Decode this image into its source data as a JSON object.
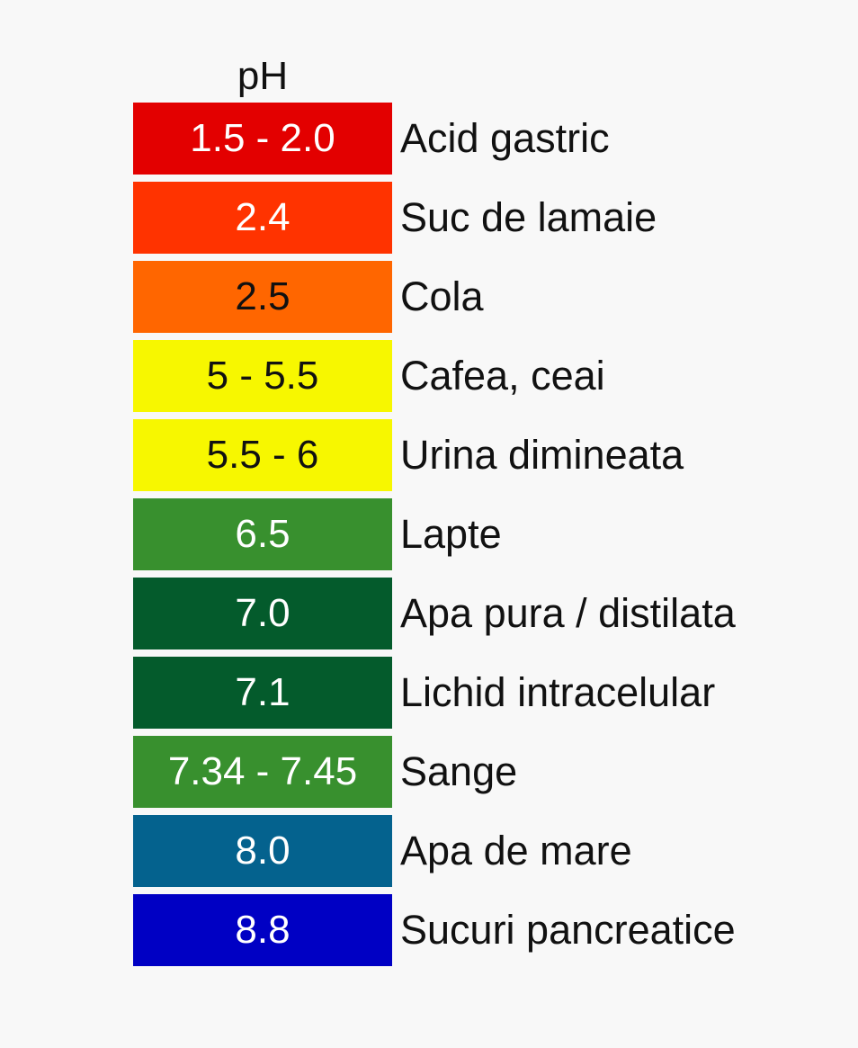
{
  "header": "pH",
  "rows": [
    {
      "value": "1.5 - 2.0",
      "label": "Acid gastric",
      "color": "#e30000",
      "text_color": "#ffffff"
    },
    {
      "value": "2.4",
      "label": "Suc de lamaie",
      "color": "#ff3300",
      "text_color": "#ffffff"
    },
    {
      "value": "2.5",
      "label": "Cola",
      "color": "#ff6600",
      "text_color": "#111111"
    },
    {
      "value": "5 - 5.5",
      "label": "Cafea, ceai",
      "color": "#f7f700",
      "text_color": "#111111"
    },
    {
      "value": "5.5 - 6",
      "label": "Urina dimineata",
      "color": "#f7f700",
      "text_color": "#111111"
    },
    {
      "value": "6.5",
      "label": "Lapte",
      "color": "#38902e",
      "text_color": "#ffffff"
    },
    {
      "value": "7.0",
      "label": "Apa pura / distilata",
      "color": "#045b2c",
      "text_color": "#ffffff"
    },
    {
      "value": "7.1",
      "label": "Lichid intracelular",
      "color": "#045b2c",
      "text_color": "#ffffff"
    },
    {
      "value": "7.34 - 7.45",
      "label": "Sange",
      "color": "#38902e",
      "text_color": "#ffffff"
    },
    {
      "value": "8.0",
      "label": "Apa de mare",
      "color": "#04628e",
      "text_color": "#ffffff"
    },
    {
      "value": "8.8",
      "label": "Sucuri pancreatice",
      "color": "#0000c4",
      "text_color": "#ffffff"
    }
  ]
}
